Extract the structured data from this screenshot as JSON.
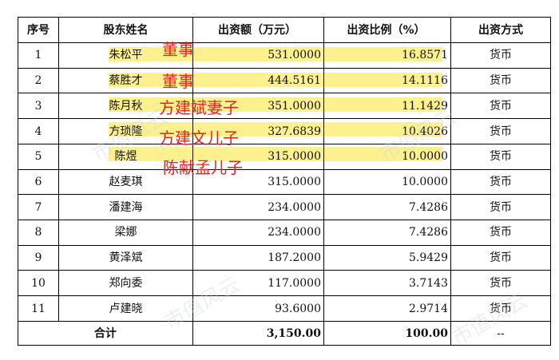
{
  "table": {
    "headers": [
      "序号",
      "股东姓名",
      "出资额（万元）",
      "出资比例（%）",
      "出资方式"
    ],
    "rows": [
      {
        "no": "1",
        "name": "朱松平",
        "amount": "531.0000",
        "ratio": "16.8571",
        "method": "货币"
      },
      {
        "no": "2",
        "name": "蔡胜才",
        "amount": "444.5161",
        "ratio": "14.1116",
        "method": "货币"
      },
      {
        "no": "3",
        "name": "陈月秋",
        "amount": "351.0000",
        "ratio": "11.1429",
        "method": "货币"
      },
      {
        "no": "4",
        "name": "方琐隆",
        "amount": "327.6839",
        "ratio": "10.4026",
        "method": "货币"
      },
      {
        "no": "5",
        "name": "陈煜",
        "amount": "315.0000",
        "ratio": "10.0000",
        "method": "货币"
      },
      {
        "no": "6",
        "name": "赵麦琪",
        "amount": "315.0000",
        "ratio": "10.0000",
        "method": "货币"
      },
      {
        "no": "7",
        "name": "潘建海",
        "amount": "234.0000",
        "ratio": "7.4286",
        "method": "货币"
      },
      {
        "no": "8",
        "name": "梁娜",
        "amount": "234.0000",
        "ratio": "7.4286",
        "method": "货币"
      },
      {
        "no": "9",
        "name": "黄泽斌",
        "amount": "187.2000",
        "ratio": "5.9429",
        "method": "货币"
      },
      {
        "no": "10",
        "name": "郑向委",
        "amount": "117.0000",
        "ratio": "3.7143",
        "method": "货币"
      },
      {
        "no": "11",
        "name": "卢建晓",
        "amount": "93.6000",
        "ratio": "2.9714",
        "method": "货币"
      }
    ],
    "total": {
      "label": "合计",
      "amount": "3,150.00",
      "ratio": "100.00",
      "method": "--"
    }
  },
  "annotations": [
    "董事",
    "董事",
    "方建斌妻子",
    "方建文儿子",
    "陈献孟儿子"
  ],
  "watermark": "市值风云",
  "colors": {
    "highlight": "#fbef7a",
    "annotation": "#e8231e"
  }
}
